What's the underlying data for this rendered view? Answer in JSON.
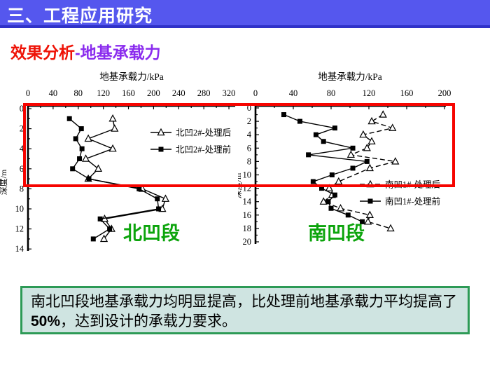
{
  "title_bar": {
    "title": "三、工程应用研究"
  },
  "subtitle": {
    "part1": "效果分析",
    "part2": "-地基承载力"
  },
  "colors": {
    "title_bar_bg": "#5557ee",
    "title_bar_edge": "#3032c8",
    "subtitle_red": "#ee1307",
    "subtitle_purple": "#8a2bee",
    "section_label_green": "#0ca40c",
    "highlight_box_red": "#f60400",
    "conclusion_bg": "#cfe4e1",
    "conclusion_border": "#2d9a56",
    "series_black": "#000000"
  },
  "chart_data": [
    {
      "type": "line",
      "title": "地基承载力/kPa",
      "xlabel": "地基承载力/kPa",
      "ylabel": "深度/m",
      "section_label": "北凹段",
      "x_axis": {
        "min": 0,
        "max": 320,
        "ticks": [
          0,
          40,
          80,
          120,
          160,
          200,
          240,
          280,
          320
        ],
        "minor_step": 20,
        "position": "top"
      },
      "y_axis": {
        "min": 0,
        "max": 14,
        "ticks": [
          0,
          2,
          4,
          6,
          8,
          10,
          12,
          14
        ],
        "minor_step": 1,
        "direction": "down"
      },
      "legend_position": "inside-upper-right",
      "series": [
        {
          "name": "北凹2#-处理后",
          "marker": "open-triangle",
          "line": "solid",
          "points": [
            [
              1,
              135
            ],
            [
              2,
              138
            ],
            [
              3,
              96
            ],
            [
              4,
              135
            ],
            [
              5,
              92
            ],
            [
              6,
              112
            ],
            [
              7,
              96
            ],
            [
              8,
              182
            ],
            [
              9,
              219
            ],
            [
              10,
              214
            ],
            [
              11,
              122
            ],
            [
              12,
              133
            ],
            [
              13,
              121
            ]
          ]
        },
        {
          "name": "北凹2#-处理前",
          "marker": "filled-square",
          "line": "solid",
          "points": [
            [
              1,
              66
            ],
            [
              2,
              85
            ],
            [
              3,
              76
            ],
            [
              4,
              86
            ],
            [
              5,
              82
            ],
            [
              6,
              71
            ],
            [
              7,
              97
            ],
            [
              8,
              177
            ],
            [
              9,
              206
            ],
            [
              10,
              208
            ],
            [
              11,
              115
            ],
            [
              12,
              130
            ],
            [
              13,
              104
            ]
          ]
        }
      ]
    },
    {
      "type": "line",
      "title": "地基承载力/kPa",
      "xlabel": "地基承载力/kPa",
      "ylabel": "深度/m",
      "section_label": "南凹段",
      "x_axis": {
        "min": 0,
        "max": 200,
        "ticks": [
          0,
          40,
          80,
          120,
          160,
          200
        ],
        "minor_step": 20,
        "position": "top"
      },
      "y_axis": {
        "min": 0,
        "max": 20,
        "ticks": [
          0,
          2,
          4,
          6,
          8,
          10,
          12,
          14,
          16,
          18,
          20
        ],
        "minor_step": 1,
        "direction": "down"
      },
      "legend_position": "inside-lower-right",
      "series": [
        {
          "name": "南凹1#-处理后",
          "marker": "open-triangle",
          "line": "dashed",
          "points": [
            [
              1,
              135
            ],
            [
              2,
              123
            ],
            [
              3,
              145
            ],
            [
              4,
              114
            ],
            [
              5,
              123
            ],
            [
              6,
              118
            ],
            [
              7,
              101
            ],
            [
              8,
              148
            ],
            [
              9,
              121
            ],
            [
              11,
              88
            ],
            [
              12,
              78
            ],
            [
              13,
              81
            ],
            [
              14,
              72
            ],
            [
              15,
              90
            ],
            [
              16,
              121
            ],
            [
              17,
              119
            ],
            [
              18,
              143
            ]
          ]
        },
        {
          "name": "南凹1#-处理前",
          "marker": "filled-square",
          "line": "solid",
          "points": [
            [
              1,
              30
            ],
            [
              2,
              47
            ],
            [
              3,
              84
            ],
            [
              4,
              64
            ],
            [
              5,
              72
            ],
            [
              6,
              103
            ],
            [
              7,
              56
            ],
            [
              8,
              118
            ],
            [
              9,
              103
            ],
            [
              10,
              81
            ],
            [
              11,
              61
            ],
            [
              12,
              70
            ],
            [
              13,
              84
            ],
            [
              14,
              77
            ],
            [
              15,
              80
            ],
            [
              16,
              98
            ],
            [
              17,
              113
            ]
          ]
        }
      ]
    }
  ],
  "annotation": {
    "prefix": "南北凹段地基承载力均明显提高，比处理前地基承载力平均提高了",
    "bold_text": "50%",
    "suffix": "，达到设计的承载力要求。"
  }
}
